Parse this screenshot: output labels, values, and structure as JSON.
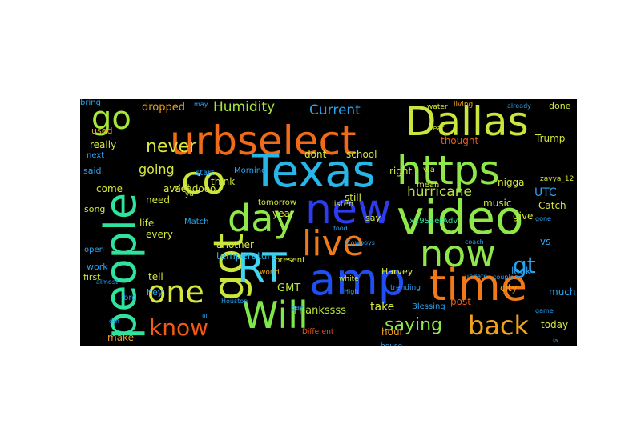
{
  "wordcloud": {
    "background": "#000000",
    "words": [
      {
        "text": "urbselect",
        "color": "#f06a17"
      },
      {
        "text": "Dallas",
        "color": "#c8e63c"
      },
      {
        "text": "Texas",
        "color": "#27b6e8"
      },
      {
        "text": "https",
        "color": "#8ee84a"
      },
      {
        "text": "new",
        "color": "#2d3cf0"
      },
      {
        "text": "video",
        "color": "#8ee84a"
      },
      {
        "text": "amp",
        "color": "#1f4ff0"
      },
      {
        "text": "time",
        "color": "#f07a1a"
      },
      {
        "text": "people",
        "color": "#2fe39e"
      },
      {
        "text": "got",
        "color": "#c8e63c"
      },
      {
        "text": "co",
        "color": "#c8e63c"
      },
      {
        "text": "day",
        "color": "#8ee84a"
      },
      {
        "text": "live",
        "color": "#f07a1a"
      },
      {
        "text": "now",
        "color": "#8ee84a"
      },
      {
        "text": "RT",
        "color": "#44d6f0"
      },
      {
        "text": "Will",
        "color": "#7ee84a"
      },
      {
        "text": "one",
        "color": "#d6e63c"
      },
      {
        "text": "go",
        "color": "#a5e83a"
      },
      {
        "text": "know",
        "color": "#f05a14"
      },
      {
        "text": "back",
        "color": "#f0a21a"
      },
      {
        "text": "never",
        "color": "#d6e63c"
      },
      {
        "text": "gt",
        "color": "#29a3f0"
      },
      {
        "text": "saying",
        "color": "#8ee84a"
      },
      {
        "text": "Humidity",
        "color": "#a5e83a"
      },
      {
        "text": "Current",
        "color": "#29a3f0"
      },
      {
        "text": "hurricane",
        "color": "#b8e63c"
      },
      {
        "text": "going",
        "color": "#d6e63c"
      },
      {
        "text": "dropped",
        "color": "#f0a21a"
      },
      {
        "text": "UTC",
        "color": "#29a3f0"
      },
      {
        "text": "GMT",
        "color": "#b8e63c"
      },
      {
        "text": "Thankssss",
        "color": "#b8e63c"
      },
      {
        "text": "take",
        "color": "#d6e63c"
      },
      {
        "text": "temperature",
        "color": "#27b6e8"
      },
      {
        "text": "still",
        "color": "#d6e63c"
      },
      {
        "text": "school",
        "color": "#d6e63c"
      },
      {
        "text": "Harvey",
        "color": "#d6e63c"
      },
      {
        "text": "Trump",
        "color": "#d6e63c"
      },
      {
        "text": "nigga",
        "color": "#d6e63c"
      },
      {
        "text": "music",
        "color": "#d6e63c"
      },
      {
        "text": "dont",
        "color": "#d6e63c"
      },
      {
        "text": "avacadooo",
        "color": "#d6e63c"
      },
      {
        "text": "really",
        "color": "#d6e63c"
      },
      {
        "text": "used",
        "color": "#f0a21a"
      },
      {
        "text": "think",
        "color": "#d6e63c"
      },
      {
        "text": "year",
        "color": "#d6e63c"
      },
      {
        "text": "thought",
        "color": "#f05a14"
      },
      {
        "text": "right",
        "color": "#d6e63c"
      },
      {
        "text": "give",
        "color": "#d6e63c"
      },
      {
        "text": "look",
        "color": "#29a3f0"
      },
      {
        "text": "hour",
        "color": "#f0a21a"
      },
      {
        "text": "make",
        "color": "#f0a21a"
      },
      {
        "text": "today",
        "color": "#d6e63c"
      },
      {
        "text": "done",
        "color": "#d6e63c"
      },
      {
        "text": "city",
        "color": "#f0a21a"
      },
      {
        "text": "post",
        "color": "#f05a14"
      },
      {
        "text": "another",
        "color": "#d6e63c"
      },
      {
        "text": "life",
        "color": "#d6e63c"
      },
      {
        "text": "every",
        "color": "#d6e63c"
      },
      {
        "text": "need",
        "color": "#d6e63c"
      },
      {
        "text": "come",
        "color": "#d6e63c"
      },
      {
        "text": "song",
        "color": "#d6e63c"
      },
      {
        "text": "tell",
        "color": "#d6e63c"
      },
      {
        "text": "said",
        "color": "#29a3f0"
      },
      {
        "text": "next",
        "color": "#29a3f0"
      },
      {
        "text": "work",
        "color": "#29a3f0"
      },
      {
        "text": "open",
        "color": "#29a3f0"
      },
      {
        "text": "first",
        "color": "#d6e63c"
      },
      {
        "text": "hey",
        "color": "#29a3f0"
      },
      {
        "text": "vs",
        "color": "#29a3f0"
      },
      {
        "text": "say",
        "color": "#d6e63c"
      },
      {
        "text": "via",
        "color": "#d6e63c"
      },
      {
        "text": "much",
        "color": "#29a3f0"
      },
      {
        "text": "Catch",
        "color": "#d6e63c"
      },
      {
        "text": "tomorrow",
        "color": "#d6e63c"
      },
      {
        "text": "listen",
        "color": "#d6e63c"
      },
      {
        "text": "mean",
        "color": "#d6e63c"
      },
      {
        "text": "Blessing",
        "color": "#29a3f0"
      },
      {
        "text": "trending",
        "color": "#29a3f0"
      },
      {
        "text": "bro",
        "color": "#29a3f0"
      },
      {
        "text": "Match",
        "color": "#29a3f0"
      },
      {
        "text": "start",
        "color": "#29a3f0"
      },
      {
        "text": "zavya_12",
        "color": "#d6e63c"
      },
      {
        "text": "x19SaerAdv",
        "color": "#2fe39e"
      },
      {
        "text": "Morning",
        "color": "#29a3f0"
      },
      {
        "text": "present",
        "color": "#d6e63c"
      },
      {
        "text": "world",
        "color": "#f0a21a"
      },
      {
        "text": "white",
        "color": "#d6e63c"
      },
      {
        "text": "High",
        "color": "#29a3f0"
      },
      {
        "text": "Different",
        "color": "#f05a14"
      },
      {
        "text": "house",
        "color": "#29a3f0"
      },
      {
        "text": "ya",
        "color": "#d6e63c"
      },
      {
        "text": "y'all",
        "color": "#d6e63c"
      },
      {
        "text": "water",
        "color": "#d6e63c"
      },
      {
        "text": "eat",
        "color": "#d6e63c"
      },
      {
        "text": "living",
        "color": "#f0a21a"
      },
      {
        "text": "already",
        "color": "#29a3f0"
      },
      {
        "text": "update",
        "color": "#29a3f0"
      },
      {
        "text": "couple",
        "color": "#29a3f0"
      },
      {
        "text": "food",
        "color": "#29a3f0"
      },
      {
        "text": "Cowboys",
        "color": "#29a3f0"
      },
      {
        "text": "coach",
        "color": "#29a3f0"
      },
      {
        "text": "almost",
        "color": "#29a3f0"
      },
      {
        "text": "gay",
        "color": "#29a3f0"
      },
      {
        "text": "dm",
        "color": "#29a3f0"
      },
      {
        "text": "lil",
        "color": "#29a3f0"
      },
      {
        "text": "Houston",
        "color": "#29a3f0"
      },
      {
        "text": "gone",
        "color": "#29a3f0"
      },
      {
        "text": "game",
        "color": "#29a3f0"
      },
      {
        "text": "may",
        "color": "#29a3f0"
      },
      {
        "text": "ia",
        "color": "#29a3f0"
      },
      {
        "text": "bring",
        "color": "#29a3f0"
      }
    ]
  }
}
